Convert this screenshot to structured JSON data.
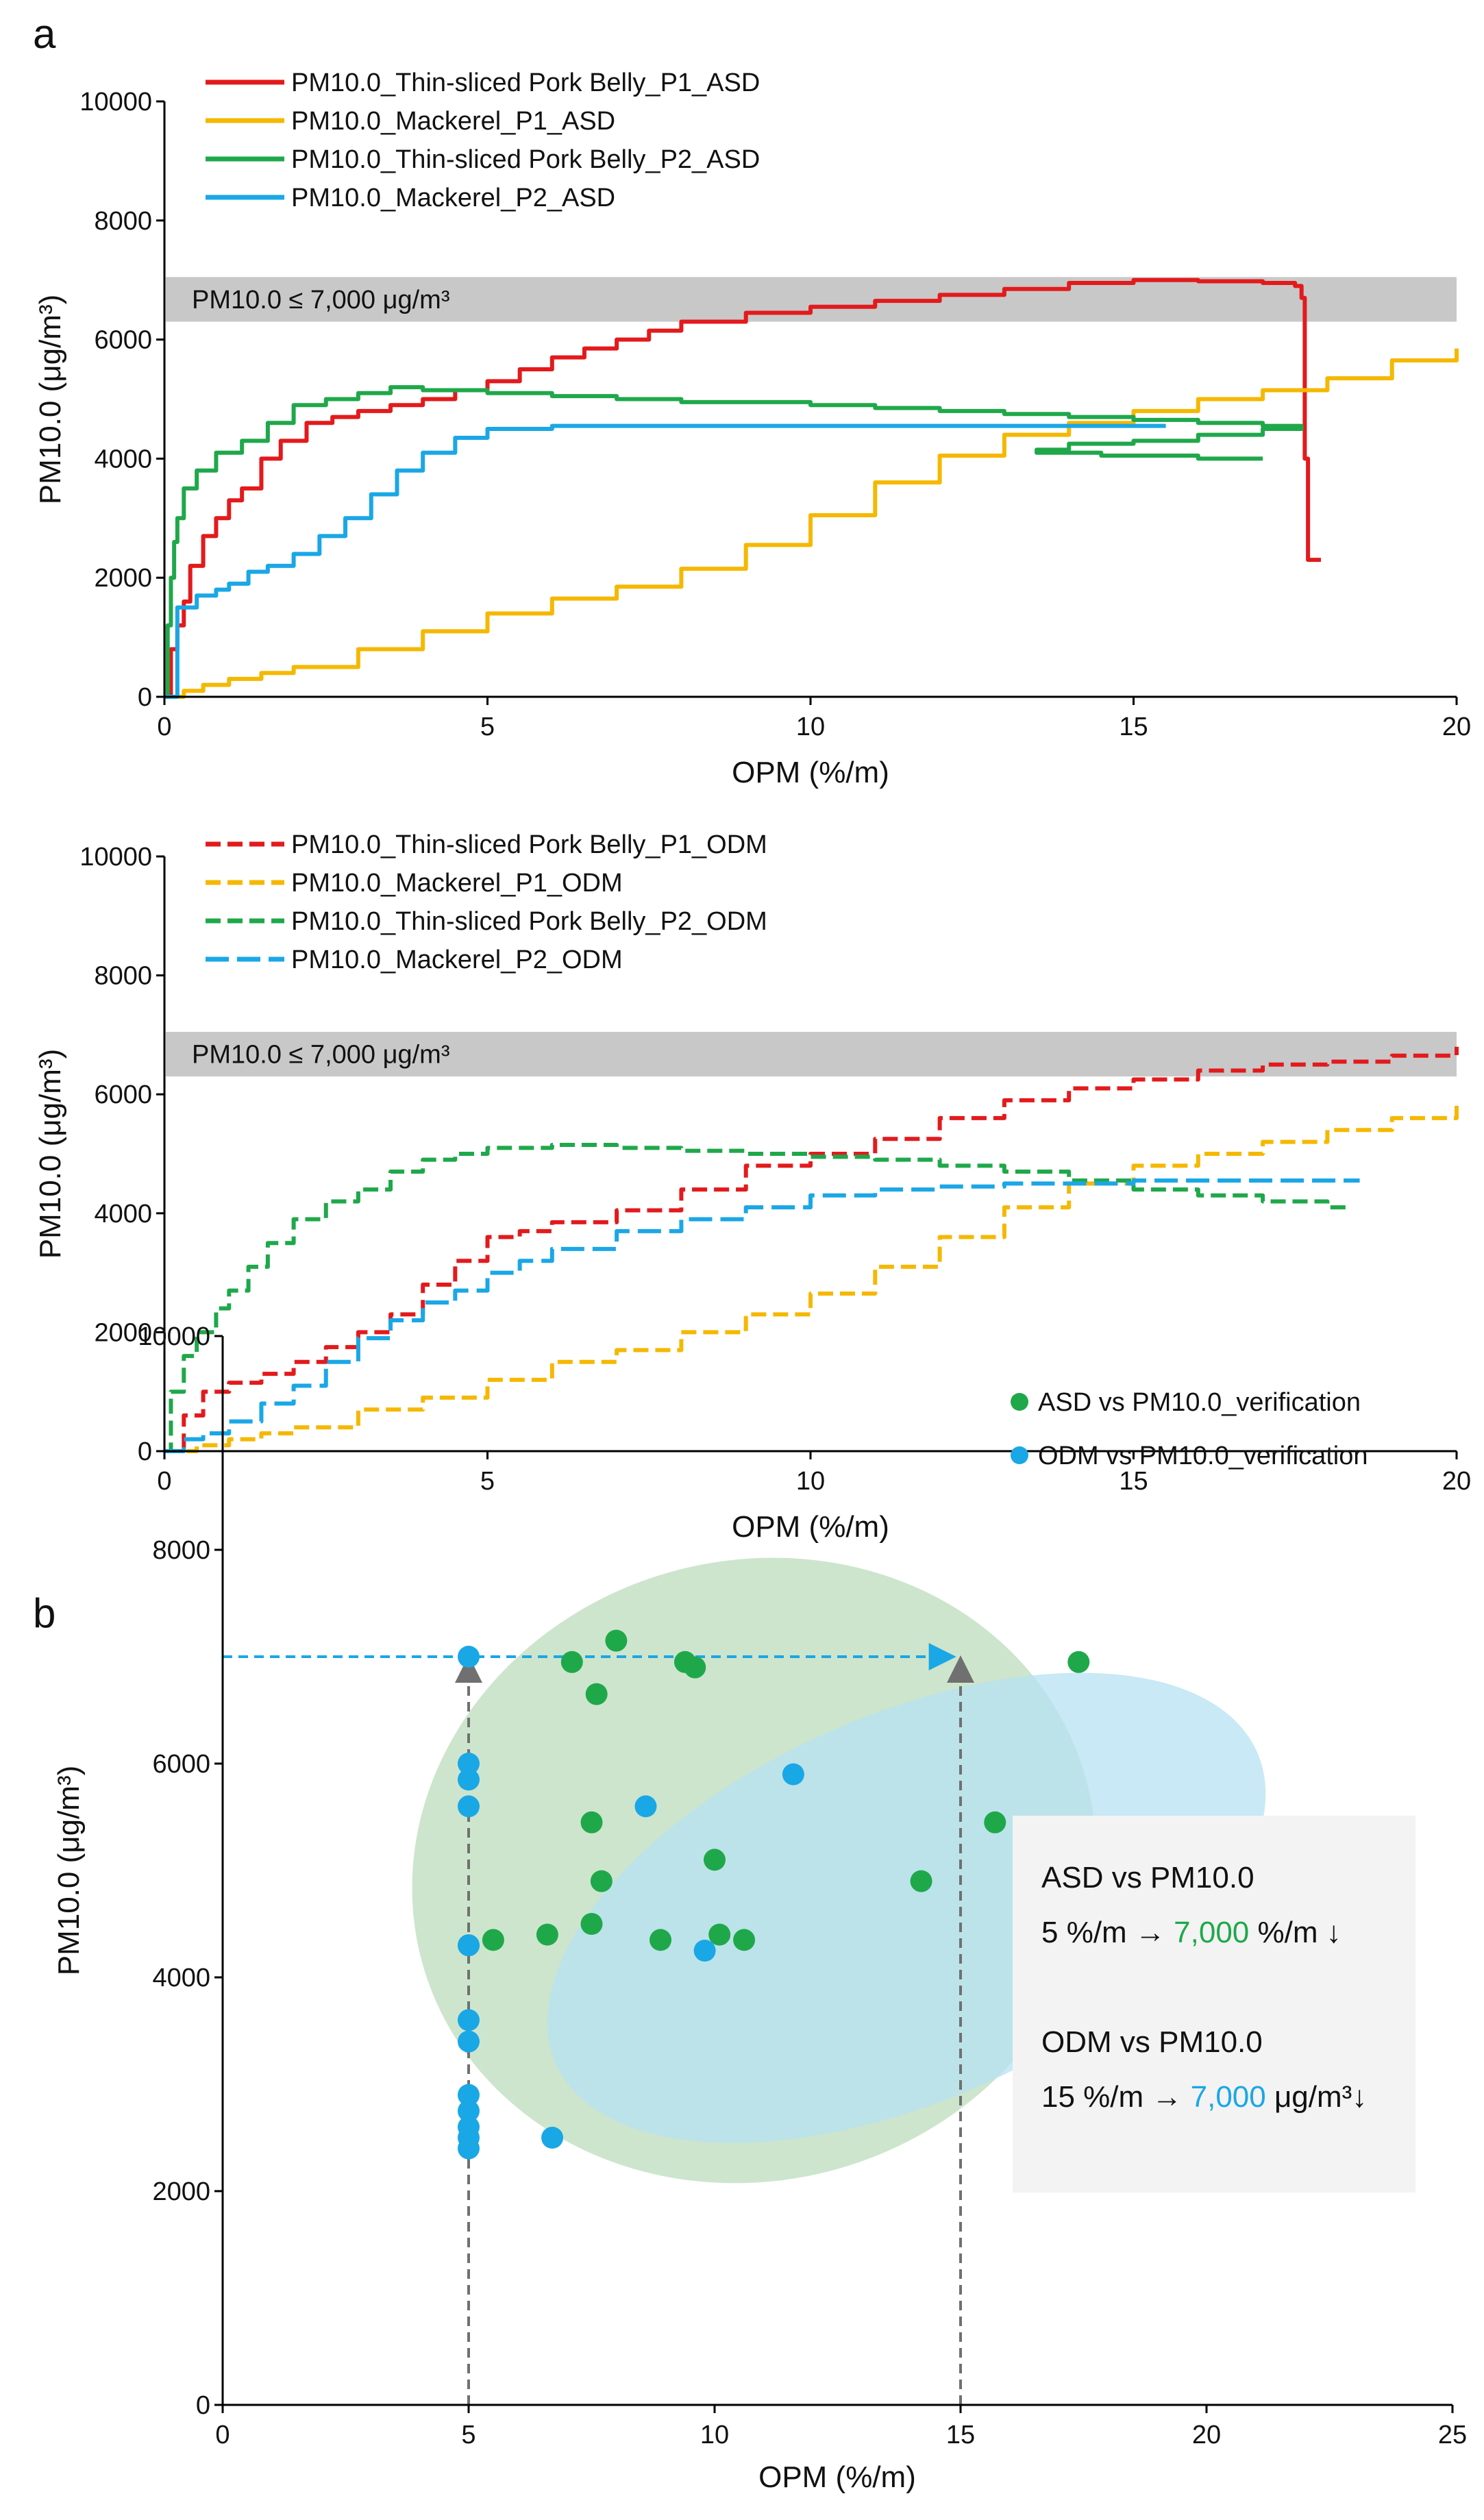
{
  "panel_labels": {
    "a": "a",
    "b": "b"
  },
  "colors": {
    "red": "#e31a1c",
    "yellow": "#f5b800",
    "green": "#1fa84a",
    "blue": "#1aa7e6",
    "band": "#c8c8c8",
    "ellipse_green": "#bcdcbc",
    "ellipse_blue": "#b5e2f2",
    "grey_arrow": "#707070"
  },
  "chart_data": [
    {
      "id": "a_top",
      "type": "line",
      "xlabel": "OPM (%/m)",
      "ylabel": "PM10.0 (μg/m³)",
      "xlim": [
        0,
        20
      ],
      "ylim": [
        0,
        10000
      ],
      "xticks": [
        "0",
        "5",
        "10",
        "15",
        "20"
      ],
      "yticks": [
        "0",
        "2000",
        "4000",
        "6000",
        "8000",
        "10000"
      ],
      "band": {
        "y_range": [
          6300,
          7050
        ],
        "label": "PM10.0 ≤ 7,000 μg/m³"
      },
      "legend_position": "top-left",
      "series": [
        {
          "name": "PM10.0_Thin-sliced Pork Belly_P1_ASD",
          "color": "red",
          "dash": "solid",
          "x": [
            0.0,
            0.1,
            0.2,
            0.3,
            0.4,
            0.6,
            0.8,
            1.0,
            1.2,
            1.5,
            1.8,
            2.2,
            2.6,
            3.0,
            3.5,
            4.0,
            4.5,
            5.0,
            5.5,
            6.0,
            6.5,
            7.0,
            7.5,
            8.0,
            9.0,
            10.0,
            11.0,
            12.0,
            13.0,
            14.0,
            15.0,
            16.0,
            17.0,
            17.5,
            17.6,
            17.65,
            17.7,
            17.9
          ],
          "y": [
            0,
            800,
            1200,
            1600,
            2200,
            2700,
            3000,
            3300,
            3500,
            4000,
            4300,
            4600,
            4700,
            4800,
            4900,
            5000,
            5150,
            5300,
            5500,
            5700,
            5850,
            6000,
            6150,
            6300,
            6450,
            6550,
            6650,
            6750,
            6850,
            6950,
            7000,
            6980,
            6950,
            6900,
            6700,
            4000,
            2300,
            2300
          ]
        },
        {
          "name": "PM10.0_Mackerel_P1_ASD",
          "color": "yellow",
          "dash": "solid",
          "x": [
            0.0,
            0.3,
            0.6,
            1.0,
            1.5,
            2.0,
            3.0,
            4.0,
            5.0,
            6.0,
            7.0,
            8.0,
            9.0,
            10.0,
            11.0,
            12.0,
            13.0,
            14.0,
            15.0,
            16.0,
            17.0,
            18.0,
            19.0,
            20.0
          ],
          "y": [
            0,
            100,
            200,
            300,
            400,
            500,
            800,
            1100,
            1400,
            1650,
            1850,
            2150,
            2550,
            3050,
            3600,
            4050,
            4400,
            4600,
            4800,
            5000,
            5150,
            5350,
            5650,
            5850
          ]
        },
        {
          "name": "PM10.0_Thin-sliced Pork Belly_P2_ASD",
          "color": "green",
          "dash": "solid",
          "x": [
            0.0,
            0.05,
            0.1,
            0.15,
            0.2,
            0.3,
            0.5,
            0.8,
            1.2,
            1.6,
            2.0,
            2.5,
            3.0,
            3.5,
            4.0,
            5.0,
            6.0,
            7.0,
            8.0,
            9.0,
            10.0,
            11.0,
            12.0,
            13.0,
            14.0,
            15.0,
            16.0,
            17.0,
            17.6,
            17.0,
            16.0,
            15.0,
            14.0,
            13.5,
            14.5,
            16.0,
            17.0
          ],
          "y": [
            0,
            1200,
            2000,
            2600,
            3000,
            3500,
            3800,
            4100,
            4300,
            4600,
            4900,
            5000,
            5100,
            5200,
            5150,
            5100,
            5050,
            5000,
            4950,
            4950,
            4900,
            4850,
            4800,
            4750,
            4700,
            4650,
            4600,
            4550,
            4500,
            4400,
            4300,
            4250,
            4150,
            4100,
            4050,
            4000,
            4000
          ]
        },
        {
          "name": "PM10.0_Mackerel_P2_ASD",
          "color": "blue",
          "dash": "solid",
          "x": [
            0.0,
            0.2,
            0.5,
            0.8,
            1.0,
            1.3,
            1.6,
            2.0,
            2.4,
            2.8,
            3.2,
            3.6,
            4.0,
            4.5,
            5.0,
            6.0,
            8.0,
            10.0,
            12.0,
            14.0,
            15.5
          ],
          "y": [
            0,
            1500,
            1700,
            1800,
            1900,
            2100,
            2200,
            2400,
            2700,
            3000,
            3400,
            3800,
            4100,
            4350,
            4500,
            4550,
            4550,
            4550,
            4550,
            4550,
            4550
          ]
        }
      ]
    },
    {
      "id": "a_bottom",
      "type": "line",
      "xlabel": "OPM (%/m)",
      "ylabel": "PM10.0 (μg/m³)",
      "xlim": [
        0,
        20
      ],
      "ylim": [
        0,
        10000
      ],
      "xticks": [
        "0",
        "5",
        "10",
        "15",
        "20"
      ],
      "yticks": [
        "0",
        "2000",
        "4000",
        "6000",
        "8000",
        "10000"
      ],
      "band": {
        "y_range": [
          6300,
          7050
        ],
        "label": "PM10.0 ≤ 7,000 μg/m³"
      },
      "legend_position": "top-left",
      "series": [
        {
          "name": "PM10.0_Thin-sliced Pork Belly_P1_ODM",
          "color": "red",
          "dash": "dashed",
          "x": [
            0.0,
            0.3,
            0.6,
            1.0,
            1.5,
            2.0,
            2.5,
            3.0,
            3.5,
            4.0,
            4.5,
            5.0,
            5.5,
            6.0,
            7.0,
            8.0,
            9.0,
            10.0,
            11.0,
            12.0,
            13.0,
            14.0,
            15.0,
            16.0,
            17.0,
            18.0,
            19.0,
            20.0
          ],
          "y": [
            0,
            600,
            1000,
            1150,
            1300,
            1500,
            1750,
            2000,
            2300,
            2800,
            3200,
            3600,
            3700,
            3850,
            4050,
            4400,
            4800,
            5000,
            5250,
            5600,
            5900,
            6100,
            6250,
            6400,
            6500,
            6550,
            6650,
            6800
          ]
        },
        {
          "name": "PM10.0_Mackerel_P1_ODM",
          "color": "yellow",
          "dash": "dashed",
          "x": [
            0.0,
            0.5,
            1.0,
            1.5,
            2.0,
            3.0,
            4.0,
            5.0,
            6.0,
            7.0,
            8.0,
            9.0,
            10.0,
            11.0,
            12.0,
            13.0,
            14.0,
            15.0,
            16.0,
            17.0,
            18.0,
            19.0,
            20.0
          ],
          "y": [
            0,
            100,
            200,
            300,
            400,
            700,
            900,
            1200,
            1500,
            1700,
            2000,
            2300,
            2650,
            3100,
            3600,
            4100,
            4500,
            4800,
            5000,
            5200,
            5400,
            5600,
            5850
          ]
        },
        {
          "name": "PM10.0_Thin-sliced Pork Belly_P2_ODM",
          "color": "green",
          "dash": "dashed",
          "x": [
            0.0,
            0.1,
            0.3,
            0.5,
            0.8,
            1.0,
            1.3,
            1.6,
            2.0,
            2.5,
            3.0,
            3.5,
            4.0,
            4.5,
            5.0,
            6.0,
            7.0,
            8.0,
            9.0,
            10.0,
            11.0,
            12.0,
            13.0,
            14.0,
            15.0,
            16.0,
            17.0,
            18.0,
            18.3
          ],
          "y": [
            0,
            1000,
            1600,
            2000,
            2400,
            2700,
            3100,
            3500,
            3900,
            4200,
            4400,
            4700,
            4900,
            5000,
            5100,
            5150,
            5100,
            5050,
            5000,
            4950,
            4900,
            4800,
            4700,
            4550,
            4400,
            4300,
            4200,
            4100,
            4050
          ]
        },
        {
          "name": "PM10.0_Mackerel_P2_ODM",
          "color": "blue",
          "dash": "longdash",
          "x": [
            0.0,
            0.3,
            0.6,
            1.0,
            1.5,
            2.0,
            2.5,
            3.0,
            3.5,
            4.0,
            4.5,
            5.0,
            5.5,
            6.0,
            7.0,
            8.0,
            9.0,
            10.0,
            11.0,
            12.0,
            13.0,
            14.0,
            15.0,
            16.0,
            17.0,
            18.0,
            18.5
          ],
          "y": [
            0,
            200,
            300,
            500,
            800,
            1100,
            1500,
            1900,
            2200,
            2500,
            2700,
            3000,
            3200,
            3400,
            3700,
            3900,
            4100,
            4300,
            4400,
            4450,
            4500,
            4500,
            4550,
            4550,
            4550,
            4550,
            4550
          ]
        }
      ]
    },
    {
      "id": "b",
      "type": "scatter",
      "xlabel": "OPM (%/m)",
      "ylabel": "PM10.0 (μg/m³)",
      "xlim": [
        0,
        25
      ],
      "ylim": [
        0,
        10000
      ],
      "xticks": [
        "0",
        "5",
        "10",
        "15",
        "20",
        "25"
      ],
      "yticks": [
        "0",
        "2000",
        "4000",
        "6000",
        "8000",
        "10000"
      ],
      "legend_position": "top-right",
      "series": [
        {
          "name": "ASD vs PM10.0_verification",
          "color": "green",
          "x": [
            5.0,
            5.5,
            6.6,
            7.1,
            7.5,
            7.5,
            7.6,
            7.7,
            8.0,
            8.9,
            9.4,
            9.6,
            10.0,
            10.1,
            10.6,
            14.2,
            15.7,
            17.4
          ],
          "y": [
            4300,
            4350,
            4400,
            6950,
            4500,
            5450,
            6650,
            4900,
            7150,
            4350,
            6950,
            6900,
            5100,
            4400,
            4350,
            4900,
            5450,
            6950
          ]
        },
        {
          "name": "ODM vs PM10.0_verification",
          "color": "blue",
          "x": [
            5.0,
            5.0,
            5.0,
            5.0,
            5.0,
            5.0,
            5.0,
            5.0,
            5.0,
            5.0,
            5.0,
            5.0,
            6.7,
            8.6,
            9.8,
            11.6
          ],
          "y": [
            7000,
            6000,
            5850,
            5600,
            4300,
            3600,
            3400,
            2900,
            2750,
            2600,
            2500,
            2400,
            2500,
            5600,
            4250,
            5900
          ]
        }
      ],
      "ellipses": [
        {
          "name": "ASD cluster",
          "color": "ellipse_green",
          "cx": 10.8,
          "cy": 5000,
          "rx": 7.0,
          "ry": 2900,
          "angle_deg": -16
        },
        {
          "name": "ODM cluster",
          "color": "ellipse_blue",
          "cx": 13.9,
          "cy": 4650,
          "rx": 7.8,
          "ry": 1800,
          "angle_deg": -24
        }
      ],
      "guides": {
        "horizontal_arrow": {
          "y": 7000,
          "x_from": 0,
          "x_to": 14.8,
          "color": "blue"
        },
        "vertical_arrows": [
          {
            "x": 5,
            "y_to": 7000,
            "color": "grey_arrow"
          },
          {
            "x": 15,
            "y_to": 7000,
            "color": "grey_arrow"
          }
        ]
      },
      "annotation": {
        "asd_title": "ASD vs PM10.0",
        "asd_pre": "5 %/m → ",
        "asd_value": "7,000",
        "asd_post": " %/m ↓",
        "odm_title": "ODM vs PM10.0",
        "odm_pre": "15 %/m → ",
        "odm_value": "7,000",
        "odm_post": " μg/m³↓"
      }
    }
  ]
}
